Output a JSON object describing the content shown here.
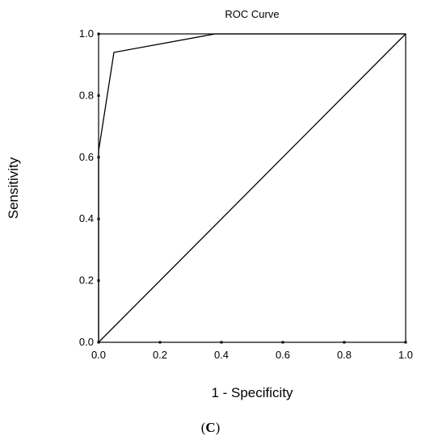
{
  "chart_data": {
    "type": "line",
    "title": "ROC Curve",
    "xlabel": "1 - Specificity",
    "ylabel": "Sensitivity",
    "xlim": [
      0.0,
      1.0
    ],
    "ylim": [
      0.0,
      1.0
    ],
    "x_ticks": [
      "0.0",
      "0.2",
      "0.4",
      "0.6",
      "0.8",
      "1.0"
    ],
    "y_ticks": [
      "0.0",
      "0.2",
      "0.4",
      "0.6",
      "0.8",
      "1.0"
    ],
    "grid": false,
    "series": [
      {
        "x": [
          0.0,
          0.0,
          0.05,
          0.38,
          1.0
        ],
        "y": [
          0.0,
          0.62,
          0.94,
          1.0,
          1.0
        ]
      },
      {
        "x": [
          0.0,
          1.0
        ],
        "y": [
          0.0,
          1.0
        ]
      }
    ],
    "colors": {
      "line": "#000000",
      "frame": "#000000"
    }
  },
  "caption": {
    "open": "(",
    "letter": "C",
    "close": ")"
  }
}
